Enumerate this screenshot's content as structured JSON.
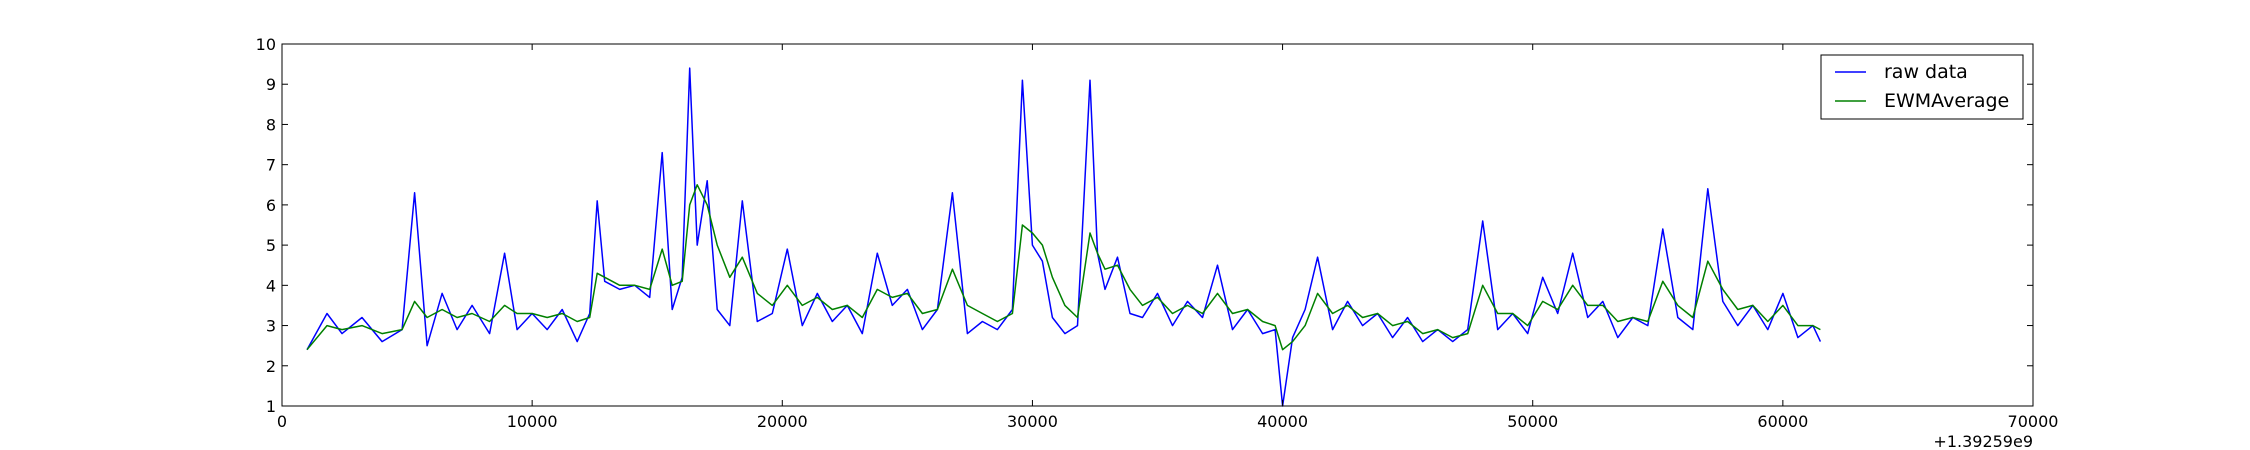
{
  "chart_data": {
    "type": "line",
    "title": "",
    "xlabel": "",
    "ylabel": "",
    "x_offset_label": "+1.39259e9",
    "xlim": [
      0,
      70000
    ],
    "ylim": [
      1,
      10
    ],
    "xticks": [
      0,
      10000,
      20000,
      30000,
      40000,
      50000,
      60000,
      70000
    ],
    "yticks": [
      1,
      2,
      3,
      4,
      5,
      6,
      7,
      8,
      9,
      10
    ],
    "grid": false,
    "legend_position": "top-right",
    "series": [
      {
        "name": "raw data",
        "color": "#0000ff",
        "x": [
          1000,
          1800,
          2400,
          3200,
          4000,
          4800,
          5300,
          5800,
          6400,
          7000,
          7600,
          8300,
          8900,
          9400,
          10000,
          10600,
          11200,
          11800,
          12300,
          12600,
          12900,
          13500,
          14100,
          14700,
          15200,
          15600,
          16000,
          16300,
          16600,
          17000,
          17400,
          17900,
          18400,
          19000,
          19600,
          20200,
          20800,
          21400,
          22000,
          22600,
          23200,
          23800,
          24400,
          25000,
          25600,
          26200,
          26800,
          27400,
          28000,
          28600,
          29200,
          29600,
          30000,
          30400,
          30800,
          31300,
          31800,
          32300,
          32600,
          32900,
          33400,
          33900,
          34400,
          35000,
          35600,
          36200,
          36800,
          37400,
          38000,
          38600,
          39200,
          39700,
          40000,
          40400,
          40900,
          41400,
          42000,
          42600,
          43200,
          43800,
          44400,
          45000,
          45600,
          46200,
          46800,
          47400,
          48000,
          48600,
          49200,
          49800,
          50400,
          51000,
          51600,
          52200,
          52800,
          53400,
          54000,
          54600,
          55200,
          55800,
          56400,
          57000,
          57600,
          58200,
          58800,
          59400,
          60000,
          60600,
          61200,
          61500
        ],
        "y": [
          2.4,
          3.3,
          2.8,
          3.2,
          2.6,
          2.9,
          6.3,
          2.5,
          3.8,
          2.9,
          3.5,
          2.8,
          4.8,
          2.9,
          3.3,
          2.9,
          3.4,
          2.6,
          3.3,
          6.1,
          4.1,
          3.9,
          4.0,
          3.7,
          7.3,
          3.4,
          4.2,
          9.4,
          5.0,
          6.6,
          3.4,
          3.0,
          6.1,
          3.1,
          3.3,
          4.9,
          3.0,
          3.8,
          3.1,
          3.5,
          2.8,
          4.8,
          3.5,
          3.9,
          2.9,
          3.4,
          6.3,
          2.8,
          3.1,
          2.9,
          3.4,
          9.1,
          5.0,
          4.6,
          3.2,
          2.8,
          3.0,
          9.1,
          4.8,
          3.9,
          4.7,
          3.3,
          3.2,
          3.8,
          3.0,
          3.6,
          3.2,
          4.5,
          2.9,
          3.4,
          2.8,
          2.9,
          1.0,
          2.7,
          3.4,
          4.7,
          2.9,
          3.6,
          3.0,
          3.3,
          2.7,
          3.2,
          2.6,
          2.9,
          2.6,
          2.9,
          5.6,
          2.9,
          3.3,
          2.8,
          4.2,
          3.3,
          4.8,
          3.2,
          3.6,
          2.7,
          3.2,
          3.0,
          5.4,
          3.2,
          2.9,
          6.4,
          3.6,
          3.0,
          3.5,
          2.9,
          3.8,
          2.7,
          3.0,
          2.6
        ]
      },
      {
        "name": "EWMAverage",
        "color": "#008000",
        "x": [
          1000,
          1800,
          2400,
          3200,
          4000,
          4800,
          5300,
          5800,
          6400,
          7000,
          7600,
          8300,
          8900,
          9400,
          10000,
          10600,
          11200,
          11800,
          12300,
          12600,
          12900,
          13500,
          14100,
          14700,
          15200,
          15600,
          16000,
          16300,
          16600,
          17000,
          17400,
          17900,
          18400,
          19000,
          19600,
          20200,
          20800,
          21400,
          22000,
          22600,
          23200,
          23800,
          24400,
          25000,
          25600,
          26200,
          26800,
          27400,
          28000,
          28600,
          29200,
          29600,
          30000,
          30400,
          30800,
          31300,
          31800,
          32300,
          32600,
          32900,
          33400,
          33900,
          34400,
          35000,
          35600,
          36200,
          36800,
          37400,
          38000,
          38600,
          39200,
          39700,
          40000,
          40400,
          40900,
          41400,
          42000,
          42600,
          43200,
          43800,
          44400,
          45000,
          45600,
          46200,
          46800,
          47400,
          48000,
          48600,
          49200,
          49800,
          50400,
          51000,
          51600,
          52200,
          52800,
          53400,
          54000,
          54600,
          55200,
          55800,
          56400,
          57000,
          57600,
          58200,
          58800,
          59400,
          60000,
          60600,
          61200,
          61500
        ],
        "y": [
          2.4,
          3.0,
          2.9,
          3.0,
          2.8,
          2.9,
          3.6,
          3.2,
          3.4,
          3.2,
          3.3,
          3.1,
          3.5,
          3.3,
          3.3,
          3.2,
          3.3,
          3.1,
          3.2,
          4.3,
          4.2,
          4.0,
          4.0,
          3.9,
          4.9,
          4.0,
          4.1,
          6.0,
          6.5,
          6.0,
          5.0,
          4.2,
          4.7,
          3.8,
          3.5,
          4.0,
          3.5,
          3.7,
          3.4,
          3.5,
          3.2,
          3.9,
          3.7,
          3.8,
          3.3,
          3.4,
          4.4,
          3.5,
          3.3,
          3.1,
          3.3,
          5.5,
          5.3,
          5.0,
          4.2,
          3.5,
          3.2,
          5.3,
          4.8,
          4.4,
          4.5,
          3.9,
          3.5,
          3.7,
          3.3,
          3.5,
          3.3,
          3.8,
          3.3,
          3.4,
          3.1,
          3.0,
          2.4,
          2.6,
          3.0,
          3.8,
          3.3,
          3.5,
          3.2,
          3.3,
          3.0,
          3.1,
          2.8,
          2.9,
          2.7,
          2.8,
          4.0,
          3.3,
          3.3,
          3.0,
          3.6,
          3.4,
          4.0,
          3.5,
          3.5,
          3.1,
          3.2,
          3.1,
          4.1,
          3.5,
          3.2,
          4.6,
          3.9,
          3.4,
          3.5,
          3.1,
          3.5,
          3.0,
          3.0,
          2.9
        ]
      }
    ]
  }
}
